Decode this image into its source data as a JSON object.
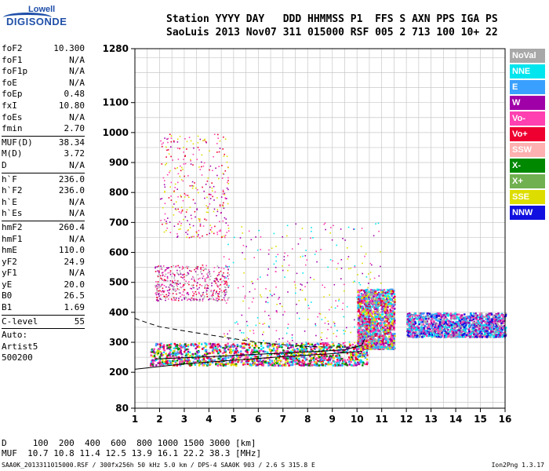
{
  "logo": {
    "line1": "Lowell",
    "line2": "DIGISONDE"
  },
  "header": {
    "row1": "Station YYYY DAY   DDD HHMMSS P1  FFS S AXN PPS IGA PS",
    "row2": "SaoLuis 2013 Nov07 311 015000 RSF 005 2 713 100 10+ 22"
  },
  "parameters": [
    {
      "name": "foF2",
      "value": "10.300"
    },
    {
      "name": "foF1",
      "value": "N/A"
    },
    {
      "name": "foF1p",
      "value": "N/A"
    },
    {
      "name": "foE",
      "value": "N/A"
    },
    {
      "name": "foEp",
      "value": "0.48"
    },
    {
      "name": "fxI",
      "value": "10.80"
    },
    {
      "name": "foEs",
      "value": "N/A"
    },
    {
      "name": "fmin",
      "value": "2.70"
    },
    {
      "sep": true
    },
    {
      "name": "MUF(D)",
      "value": "38.34"
    },
    {
      "name": "M(D)",
      "value": "3.72"
    },
    {
      "name": "D",
      "value": "N/A"
    },
    {
      "sep": true
    },
    {
      "name": "h`F",
      "value": "236.0"
    },
    {
      "name": "h`F2",
      "value": "236.0"
    },
    {
      "name": "h`E",
      "value": "N/A"
    },
    {
      "name": "h`Es",
      "value": "N/A"
    },
    {
      "sep": true
    },
    {
      "name": "hmF2",
      "value": "260.4"
    },
    {
      "name": "hmF1",
      "value": "N/A"
    },
    {
      "name": "hmE",
      "value": "110.0"
    },
    {
      "name": "yF2",
      "value": "24.9"
    },
    {
      "name": "yF1",
      "value": "N/A"
    },
    {
      "name": "yE",
      "value": "20.0"
    },
    {
      "name": "B0",
      "value": "26.5"
    },
    {
      "name": "B1",
      "value": "1.69"
    },
    {
      "sep": true
    },
    {
      "name": "C-level",
      "value": "55"
    },
    {
      "sep": true
    },
    {
      "name": "Auto:",
      "value": ""
    },
    {
      "name": "Artist5",
      "value": ""
    },
    {
      "name": "500200",
      "value": ""
    }
  ],
  "legend": [
    {
      "label": "NoVal",
      "color": "#a8a8a8"
    },
    {
      "label": "NNE",
      "color": "#00e5ee"
    },
    {
      "label": "E",
      "color": "#3aa0ff"
    },
    {
      "label": "W",
      "color": "#a000a8"
    },
    {
      "label": "Vo-",
      "color": "#ff40b0"
    },
    {
      "label": "Vo+",
      "color": "#ee0030"
    },
    {
      "label": "SSW",
      "color": "#ffb0b0"
    },
    {
      "label": "X-",
      "color": "#008800"
    },
    {
      "label": "X+",
      "color": "#70b050"
    },
    {
      "label": "SSE",
      "color": "#dddd00"
    },
    {
      "label": "NNW",
      "color": "#1010e0"
    }
  ],
  "footer": {
    "d_row": "D     100  200  400  600  800 1000 1500 3000 [km]",
    "muf_row": "MUF  10.7 10.8 11.4 12.5 13.9 16.1 22.2 38.3 [MHz]",
    "fileinfo": "SAA0K_2013311015000.RSF / 300fx256h 50 kHz 5.0 km / DPS-4 SAA0K 903 / 2.6 S 315.8 E",
    "version": "Ion2Png 1.3.17"
  },
  "chart_data": {
    "type": "scatter",
    "xlim": [
      1,
      16
    ],
    "ylim": [
      80,
      1280
    ],
    "x_ticks": [
      1,
      2,
      3,
      4,
      5,
      6,
      7,
      8,
      9,
      10,
      11,
      12,
      13,
      14,
      15,
      16
    ],
    "y_ticks": [
      80,
      200,
      300,
      400,
      500,
      600,
      700,
      800,
      900,
      1000,
      1100,
      1280
    ],
    "grid": true,
    "legend_position": "right",
    "echo_regions": [
      {
        "x_range": [
          1.6,
          10.4
        ],
        "y_range": [
          225,
          300
        ],
        "density": "high",
        "colors": [
          "#ee0030",
          "#ff40b0",
          "#008800",
          "#a000a8",
          "#00e5ee",
          "#3aa0ff",
          "#dddd00"
        ]
      },
      {
        "x_range": [
          1.8,
          4.8
        ],
        "y_range": [
          440,
          560
        ],
        "density": "medium",
        "colors": [
          "#ee0030",
          "#ff40b0",
          "#a000a8",
          "#a8a8a8"
        ]
      },
      {
        "x_range": [
          2.0,
          4.8
        ],
        "y_range": [
          650,
          1000
        ],
        "density": "low",
        "colors": [
          "#ff40b0",
          "#a000a8",
          "#ee0030",
          "#dddd00"
        ]
      },
      {
        "x_range": [
          10.0,
          11.5
        ],
        "y_range": [
          280,
          480
        ],
        "density": "high",
        "colors": [
          "#ee0030",
          "#ff40b0",
          "#a000a8",
          "#00e5ee",
          "#3aa0ff",
          "#dddd00",
          "#a8a8a8"
        ]
      },
      {
        "x_range": [
          12.0,
          16.0
        ],
        "y_range": [
          320,
          400
        ],
        "density": "high",
        "colors": [
          "#ff40b0",
          "#a000a8",
          "#00e5ee",
          "#3aa0ff",
          "#a8a8a8",
          "#1010e0"
        ]
      },
      {
        "x_range": [
          4.5,
          11.0
        ],
        "y_range": [
          300,
          700
        ],
        "density": "low",
        "colors": [
          "#a000a8",
          "#ff40b0",
          "#dddd00",
          "#00e5ee"
        ]
      }
    ],
    "traces": [
      {
        "name": "virtual_height_lower",
        "style": "solid",
        "points": [
          [
            1,
            210
          ],
          [
            3,
            228
          ],
          [
            5,
            240
          ],
          [
            7,
            252
          ],
          [
            9,
            262
          ],
          [
            10.2,
            270
          ]
        ]
      },
      {
        "name": "virtual_height_upper",
        "style": "solid",
        "points": [
          [
            1.8,
            244
          ],
          [
            4,
            252
          ],
          [
            6,
            260
          ],
          [
            8,
            268
          ],
          [
            9.5,
            275
          ],
          [
            10.2,
            290
          ],
          [
            10.3,
            310
          ]
        ]
      },
      {
        "name": "profile",
        "style": "dashed",
        "points": [
          [
            1,
            380
          ],
          [
            1.5,
            365
          ],
          [
            2,
            352
          ],
          [
            3,
            338
          ],
          [
            4,
            325
          ],
          [
            5,
            312
          ],
          [
            6,
            300
          ],
          [
            7,
            292
          ],
          [
            8,
            286
          ],
          [
            9,
            284
          ],
          [
            10,
            284
          ]
        ]
      }
    ]
  }
}
